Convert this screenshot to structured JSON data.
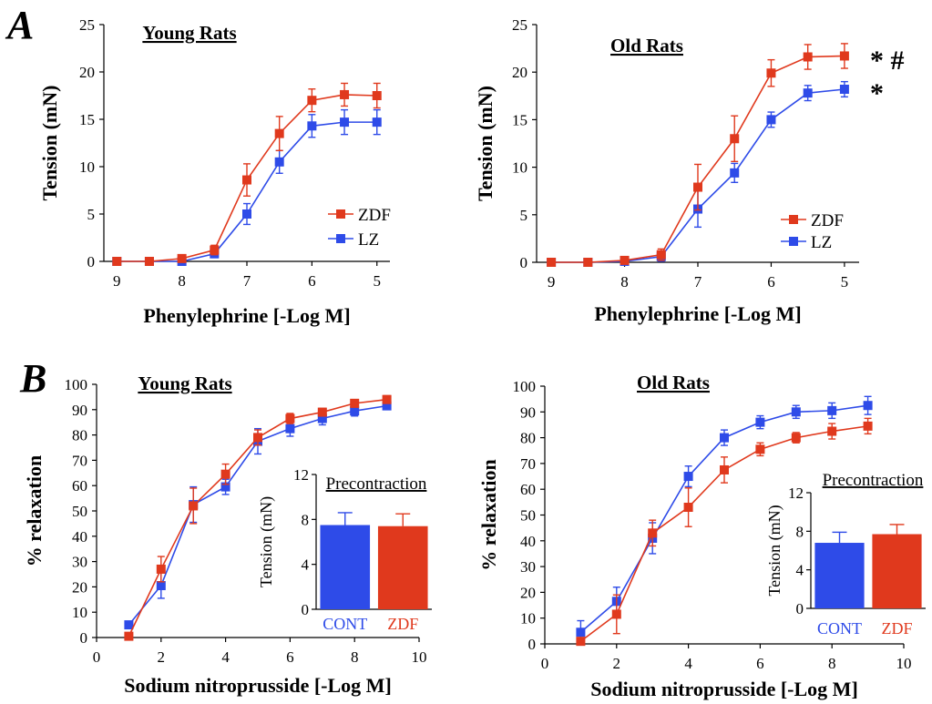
{
  "panels": {
    "A": "A",
    "B": "B"
  },
  "colors": {
    "zdf": "#e0391d",
    "lz": "#2e4be8",
    "axis": "#000000"
  },
  "chart_data": [
    {
      "type": "line",
      "title": "Young Rats",
      "xlabel": "Phenylephrine [-Log M]",
      "ylabel": "Tension (mN)",
      "xlim": [
        9.2,
        4.8
      ],
      "ylim": [
        0,
        25
      ],
      "xticks": [
        9,
        8,
        7,
        6,
        5
      ],
      "yticks": [
        0,
        5,
        10,
        15,
        20,
        25
      ],
      "x": [
        9.0,
        8.5,
        8.0,
        7.5,
        7.0,
        6.5,
        6.0,
        5.5,
        5.0
      ],
      "legend": "right",
      "significance": "",
      "series": [
        {
          "name": "ZDF",
          "color": "#e0391d",
          "values": [
            0,
            0,
            0.3,
            1.2,
            8.6,
            13.5,
            17.0,
            17.6,
            17.5
          ],
          "errors": [
            0,
            0,
            0.2,
            0.5,
            1.7,
            1.8,
            1.2,
            1.2,
            1.3
          ]
        },
        {
          "name": "LZ",
          "color": "#2e4be8",
          "values": [
            0,
            0,
            0,
            0.8,
            5.0,
            10.5,
            14.3,
            14.7,
            14.7
          ],
          "errors": [
            0,
            0,
            0.1,
            0.4,
            1.1,
            1.2,
            1.2,
            1.3,
            1.3
          ]
        }
      ]
    },
    {
      "type": "line",
      "title": "Old Rats",
      "xlabel": "Phenylephrine [-Log M]",
      "ylabel": "Tension (mN)",
      "xlim": [
        9.2,
        4.8
      ],
      "ylim": [
        0,
        25
      ],
      "xticks": [
        9,
        8,
        7,
        6,
        5
      ],
      "yticks": [
        0,
        5,
        10,
        15,
        20,
        25
      ],
      "x": [
        9.0,
        8.5,
        8.0,
        7.5,
        7.0,
        6.5,
        6.0,
        5.5,
        5.0
      ],
      "legend": "right",
      "significance": [
        "* #",
        "*"
      ],
      "series": [
        {
          "name": "ZDF",
          "color": "#e0391d",
          "values": [
            0,
            0,
            0.2,
            0.8,
            7.9,
            13.0,
            19.9,
            21.6,
            21.7
          ],
          "errors": [
            0,
            0,
            0.2,
            0.6,
            2.4,
            2.4,
            1.4,
            1.3,
            1.3
          ]
        },
        {
          "name": "LZ",
          "color": "#2e4be8",
          "values": [
            0,
            0,
            0.1,
            0.6,
            5.6,
            9.4,
            15.0,
            17.8,
            18.2
          ],
          "errors": [
            0,
            0,
            0.1,
            0.5,
            1.9,
            1.0,
            0.8,
            0.8,
            0.8
          ]
        }
      ]
    },
    {
      "type": "line",
      "title": "Young Rats",
      "xlabel": "Sodium nitroprusside [-Log M]",
      "ylabel": "% relaxation",
      "xlim": [
        0,
        10
      ],
      "ylim": [
        0,
        100
      ],
      "xticks": [
        0,
        2,
        4,
        6,
        8,
        10
      ],
      "yticks": [
        0,
        10,
        20,
        30,
        40,
        50,
        60,
        70,
        80,
        90,
        100
      ],
      "x": [
        1,
        2,
        3,
        4,
        5,
        6,
        7,
        8,
        9
      ],
      "series": [
        {
          "name": "ZDF",
          "color": "#e0391d",
          "values": [
            0.5,
            27.0,
            52.0,
            64.5,
            79.0,
            86.5,
            89.0,
            92.5,
            94.0
          ],
          "errors": [
            0,
            5.0,
            7.0,
            4.0,
            3.0,
            2.0,
            1.5,
            1.5,
            1.5
          ]
        },
        {
          "name": "CONT",
          "color": "#2e4be8",
          "values": [
            5.0,
            20.5,
            52.5,
            59.5,
            77.5,
            82.5,
            86.5,
            89.5,
            91.5
          ],
          "errors": [
            0.5,
            5.0,
            7.0,
            3.0,
            5.0,
            3.0,
            2.5,
            2.0,
            1.5
          ]
        }
      ],
      "inset": {
        "type": "bar",
        "title": "Precontraction",
        "ylabel": "Tension (mN)",
        "ylim": [
          0,
          12
        ],
        "yticks": [
          0,
          4,
          8,
          12
        ],
        "categories": [
          "CONT",
          "ZDF"
        ],
        "values": [
          7.5,
          7.4
        ],
        "errors": [
          1.1,
          1.1
        ],
        "colors": [
          "#2e4be8",
          "#e0391d"
        ]
      }
    },
    {
      "type": "line",
      "title": "Old Rats",
      "xlabel": "Sodium nitroprusside [-Log M]",
      "ylabel": "% relaxation",
      "xlim": [
        0,
        10
      ],
      "ylim": [
        0,
        100
      ],
      "xticks": [
        0,
        2,
        4,
        6,
        8,
        10
      ],
      "yticks": [
        0,
        10,
        20,
        30,
        40,
        50,
        60,
        70,
        80,
        90,
        100
      ],
      "x": [
        1,
        2,
        3,
        4,
        5,
        6,
        7,
        8,
        9
      ],
      "series": [
        {
          "name": "ZDF",
          "color": "#e0391d",
          "values": [
            1.0,
            11.5,
            43.0,
            53.0,
            67.5,
            75.5,
            80.0,
            82.5,
            84.5
          ],
          "errors": [
            0.5,
            7.5,
            5.0,
            7.5,
            5.0,
            2.5,
            2.0,
            3.0,
            3.0
          ]
        },
        {
          "name": "CONT",
          "color": "#2e4be8",
          "values": [
            4.5,
            16.5,
            41.0,
            65.0,
            80.0,
            86.0,
            90.0,
            90.5,
            92.5
          ],
          "errors": [
            4.5,
            5.5,
            6.0,
            4.0,
            3.0,
            2.5,
            2.5,
            3.0,
            3.5
          ]
        }
      ],
      "inset": {
        "type": "bar",
        "title": "Precontraction",
        "ylabel": "Tension (mN)",
        "ylim": [
          0,
          12
        ],
        "yticks": [
          0,
          4,
          8,
          12
        ],
        "categories": [
          "CONT",
          "ZDF"
        ],
        "values": [
          6.8,
          7.7
        ],
        "errors": [
          1.1,
          1.0
        ],
        "colors": [
          "#2e4be8",
          "#e0391d"
        ]
      }
    }
  ]
}
